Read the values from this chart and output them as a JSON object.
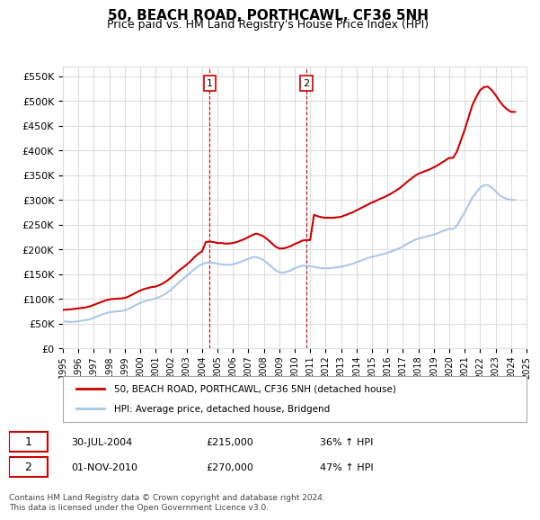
{
  "title": "50, BEACH ROAD, PORTHCAWL, CF36 5NH",
  "subtitle": "Price paid vs. HM Land Registry's House Price Index (HPI)",
  "ylim": [
    0,
    570000
  ],
  "yticks": [
    0,
    50000,
    100000,
    150000,
    200000,
    250000,
    300000,
    350000,
    400000,
    450000,
    500000,
    550000
  ],
  "ylabel_format": "£{0}K",
  "background_color": "#ffffff",
  "grid_color": "#dddddd",
  "sale_color": "#cc0000",
  "hpi_color": "#aac8e8",
  "annotation1": {
    "label": "1",
    "date": "30-JUL-2004",
    "price": "£215,000",
    "pct": "36% ↑ HPI"
  },
  "annotation2": {
    "label": "2",
    "date": "01-NOV-2010",
    "price": "£270,000",
    "pct": "47% ↑ HPI"
  },
  "legend_sale": "50, BEACH ROAD, PORTHCAWL, CF36 5NH (detached house)",
  "legend_hpi": "HPI: Average price, detached house, Bridgend",
  "footer": "Contains HM Land Registry data © Crown copyright and database right 2024.\nThis data is licensed under the Open Government Licence v3.0.",
  "hpi_data": {
    "dates": [
      1995.0,
      1995.25,
      1995.5,
      1995.75,
      1996.0,
      1996.25,
      1996.5,
      1996.75,
      1997.0,
      1997.25,
      1997.5,
      1997.75,
      1998.0,
      1998.25,
      1998.5,
      1998.75,
      1999.0,
      1999.25,
      1999.5,
      1999.75,
      2000.0,
      2000.25,
      2000.5,
      2000.75,
      2001.0,
      2001.25,
      2001.5,
      2001.75,
      2002.0,
      2002.25,
      2002.5,
      2002.75,
      2003.0,
      2003.25,
      2003.5,
      2003.75,
      2004.0,
      2004.25,
      2004.5,
      2004.75,
      2005.0,
      2005.25,
      2005.5,
      2005.75,
      2006.0,
      2006.25,
      2006.5,
      2006.75,
      2007.0,
      2007.25,
      2007.5,
      2007.75,
      2008.0,
      2008.25,
      2008.5,
      2008.75,
      2009.0,
      2009.25,
      2009.5,
      2009.75,
      2010.0,
      2010.25,
      2010.5,
      2010.75,
      2011.0,
      2011.25,
      2011.5,
      2011.75,
      2012.0,
      2012.25,
      2012.5,
      2012.75,
      2013.0,
      2013.25,
      2013.5,
      2013.75,
      2014.0,
      2014.25,
      2014.5,
      2014.75,
      2015.0,
      2015.25,
      2015.5,
      2015.75,
      2016.0,
      2016.25,
      2016.5,
      2016.75,
      2017.0,
      2017.25,
      2017.5,
      2017.75,
      2018.0,
      2018.25,
      2018.5,
      2018.75,
      2019.0,
      2019.25,
      2019.5,
      2019.75,
      2020.0,
      2020.25,
      2020.5,
      2020.75,
      2021.0,
      2021.25,
      2021.5,
      2021.75,
      2022.0,
      2022.25,
      2022.5,
      2022.75,
      2023.0,
      2023.25,
      2023.5,
      2023.75,
      2024.0,
      2024.25
    ],
    "values": [
      55000,
      54000,
      53500,
      54000,
      55000,
      56000,
      57500,
      59000,
      62000,
      65000,
      68000,
      71000,
      73000,
      74000,
      75000,
      75500,
      77000,
      80000,
      84000,
      88000,
      92000,
      95000,
      97000,
      99000,
      101000,
      104000,
      108000,
      113000,
      119000,
      126000,
      133000,
      140000,
      146000,
      153000,
      160000,
      166000,
      170000,
      173000,
      174000,
      173000,
      171000,
      170000,
      169000,
      169000,
      170000,
      172000,
      175000,
      178000,
      181000,
      184000,
      185000,
      182000,
      178000,
      172000,
      165000,
      158000,
      154000,
      153000,
      155000,
      158000,
      162000,
      165000,
      167000,
      167000,
      166000,
      165000,
      163000,
      162000,
      162000,
      162000,
      163000,
      164000,
      165000,
      167000,
      169000,
      171000,
      174000,
      177000,
      180000,
      183000,
      185000,
      187000,
      189000,
      191000,
      193000,
      196000,
      199000,
      202000,
      206000,
      211000,
      215000,
      219000,
      222000,
      224000,
      226000,
      228000,
      230000,
      233000,
      236000,
      239000,
      242000,
      241000,
      248000,
      262000,
      275000,
      290000,
      305000,
      315000,
      325000,
      330000,
      330000,
      325000,
      318000,
      310000,
      305000,
      302000,
      300000,
      300000
    ]
  },
  "sale_data": {
    "dates": [
      1995.0,
      1995.25,
      1995.5,
      1995.75,
      1996.0,
      1996.25,
      1996.5,
      1996.75,
      1997.0,
      1997.25,
      1997.5,
      1997.75,
      1998.0,
      1998.25,
      1998.5,
      1998.75,
      1999.0,
      1999.25,
      1999.5,
      1999.75,
      2000.0,
      2000.25,
      2000.5,
      2000.75,
      2001.0,
      2001.25,
      2001.5,
      2001.75,
      2002.0,
      2002.25,
      2002.5,
      2002.75,
      2003.0,
      2003.25,
      2003.5,
      2003.75,
      2004.0,
      2004.25,
      2004.5,
      2004.75,
      2005.0,
      2005.25,
      2005.5,
      2005.75,
      2006.0,
      2006.25,
      2006.5,
      2006.75,
      2007.0,
      2007.25,
      2007.5,
      2007.75,
      2008.0,
      2008.25,
      2008.5,
      2008.75,
      2009.0,
      2009.25,
      2009.5,
      2009.75,
      2010.0,
      2010.25,
      2010.5,
      2010.75,
      2011.0,
      2011.25,
      2011.5,
      2011.75,
      2012.0,
      2012.25,
      2012.5,
      2012.75,
      2013.0,
      2013.25,
      2013.5,
      2013.75,
      2014.0,
      2014.25,
      2014.5,
      2014.75,
      2015.0,
      2015.25,
      2015.5,
      2015.75,
      2016.0,
      2016.25,
      2016.5,
      2016.75,
      2017.0,
      2017.25,
      2017.5,
      2017.75,
      2018.0,
      2018.25,
      2018.5,
      2018.75,
      2019.0,
      2019.25,
      2019.5,
      2019.75,
      2020.0,
      2020.25,
      2020.5,
      2020.75,
      2021.0,
      2021.25,
      2021.5,
      2021.75,
      2022.0,
      2022.25,
      2022.5,
      2022.75,
      2023.0,
      2023.25,
      2023.5,
      2023.75,
      2024.0,
      2024.25
    ],
    "values": [
      78000,
      78500,
      79000,
      80000,
      81000,
      82000,
      83000,
      85000,
      88000,
      91000,
      94000,
      97000,
      99000,
      100000,
      100500,
      101000,
      102000,
      105000,
      109000,
      113000,
      117000,
      120000,
      122000,
      124000,
      125000,
      128000,
      132000,
      137000,
      143000,
      150000,
      157000,
      163000,
      169000,
      176000,
      184000,
      191000,
      196000,
      215000,
      216000,
      215000,
      213000,
      213000,
      212000,
      212000,
      213000,
      215000,
      218000,
      221000,
      225000,
      229000,
      232000,
      230000,
      226000,
      220000,
      213000,
      206000,
      202000,
      202000,
      204000,
      207000,
      211000,
      214000,
      218000,
      219000,
      219000,
      270000,
      267000,
      265000,
      264000,
      264000,
      264000,
      265000,
      266000,
      269000,
      272000,
      275000,
      279000,
      283000,
      287000,
      291000,
      295000,
      298000,
      302000,
      305000,
      309000,
      313000,
      318000,
      323000,
      329000,
      336000,
      342000,
      348000,
      353000,
      356000,
      359000,
      362000,
      366000,
      370000,
      375000,
      380000,
      385000,
      385000,
      398000,
      420000,
      442000,
      467000,
      492000,
      508000,
      522000,
      528000,
      529000,
      522000,
      512000,
      500000,
      490000,
      483000,
      478000,
      478000
    ]
  },
  "ann1_x": 2004.5,
  "ann2_x": 2010.75,
  "xmin": 1995,
  "xmax": 2025
}
